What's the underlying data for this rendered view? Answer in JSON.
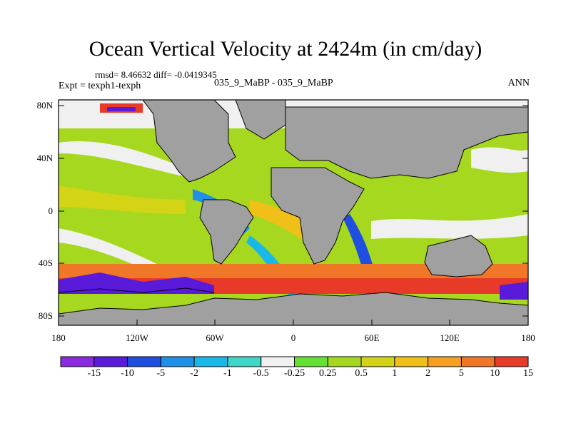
{
  "title": "Ocean Vertical Velocity at 2424m (in cm/day)",
  "stats_line": "rmsd= 8.46632 diff= -0.0419345",
  "expt_line": "Expt = texph1-texph",
  "case_line": "035_9_MaBP - 035_9_MaBP",
  "season": "ANN",
  "lat_ticks": [
    "80N",
    "40N",
    "0",
    "40S",
    "80S"
  ],
  "lon_ticks": [
    "180",
    "120W",
    "60W",
    "0",
    "60E",
    "120E",
    "180"
  ],
  "colorbar": {
    "labels": [
      "-15",
      "-10",
      "-5",
      "-2",
      "-1",
      "-0.5",
      "-0.25",
      "0.25",
      "0.5",
      "1",
      "2",
      "5",
      "10",
      "15"
    ],
    "colors": [
      "#8a2be2",
      "#5a1ad9",
      "#1e4fe0",
      "#1f90e8",
      "#19b8e8",
      "#3fd6c8",
      "#f0f0f0",
      "#66e032",
      "#a6d820",
      "#d4d416",
      "#f0c018",
      "#f5a020",
      "#f07628",
      "#e83a28"
    ]
  },
  "land_color": "#a0a0a0"
}
